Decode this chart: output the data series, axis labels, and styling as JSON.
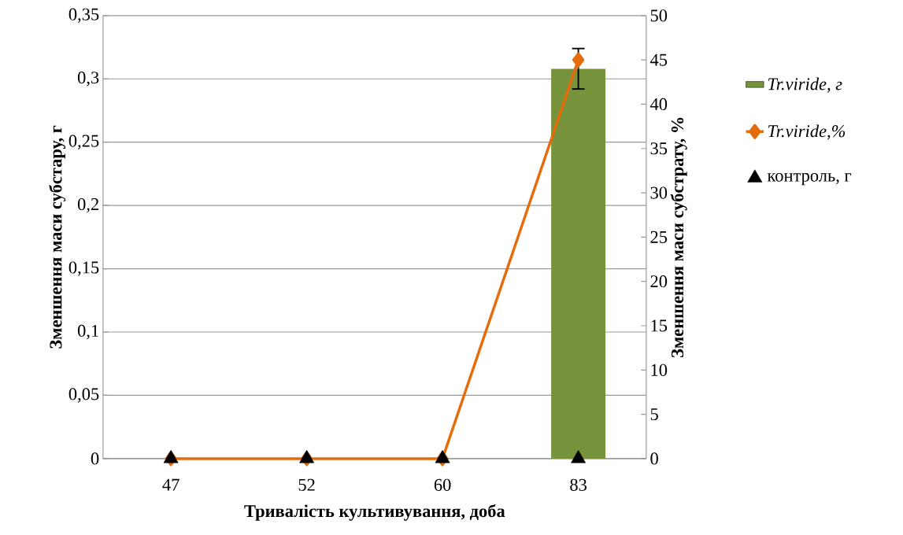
{
  "chart_data": {
    "type": "bar",
    "categories": [
      "47",
      "52",
      "60",
      "83"
    ],
    "xlabel": "Тривалість культивування, доба",
    "ylabel": "Зменшення маси субстару, г",
    "y2label": "Зменшення маси субстрату, %",
    "series": [
      {
        "name": "*Tr.viride, г*",
        "color": "#77933c",
        "values": [
          0,
          0,
          0,
          0.308
        ],
        "errors": [
          null,
          null,
          null,
          0.016
        ]
      },
      {
        "name": "*Tr.viride,%*",
        "type": "line",
        "axis": "y2",
        "color": "#e46c0a",
        "marker": "diamond",
        "values": [
          0,
          0,
          0,
          45
        ]
      },
      {
        "name": "контроль, г",
        "type": "scatter",
        "color": "#000000",
        "marker": "triangle",
        "values": [
          0,
          0,
          0,
          0
        ]
      }
    ],
    "ylim": [
      0,
      0.35
    ],
    "yticks": [
      0,
      {
        "value": 0.05,
        "label": "0,05"
      },
      {
        "value": 0.1,
        "label": "0,1"
      },
      {
        "value": 0.15,
        "label": "0,15"
      },
      {
        "value": 0.2,
        "label": "0,2"
      },
      {
        "value": 0.25,
        "label": "0,25"
      },
      {
        "value": 0.3,
        "label": "0,3"
      },
      {
        "value": 0.35,
        "label": "0,35"
      }
    ],
    "y2lim": [
      0,
      50
    ],
    "y2ticks": [
      0,
      5,
      10,
      15,
      20,
      25,
      30,
      35,
      40,
      45,
      50
    ],
    "grid": "y",
    "legend": "right"
  }
}
